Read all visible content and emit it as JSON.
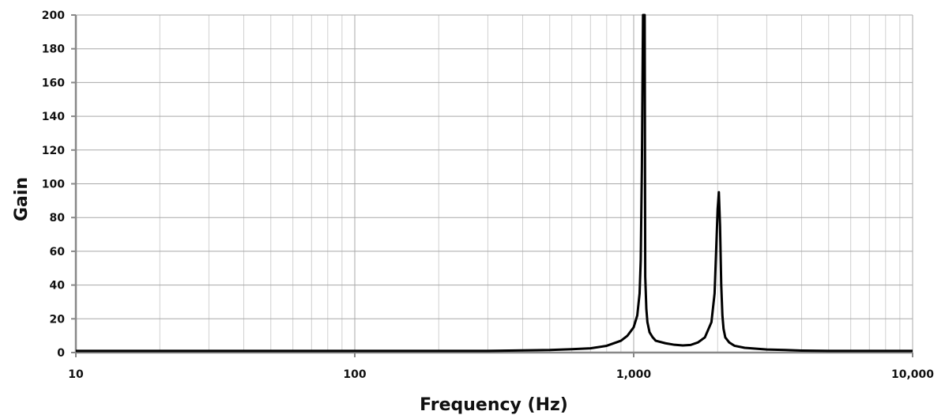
{
  "chart_data": {
    "type": "line",
    "title": "",
    "xlabel": "Frequency (Hz)",
    "ylabel": "Gain",
    "x_scale": "log",
    "xlim": [
      10,
      10000
    ],
    "ylim": [
      0,
      200
    ],
    "x_ticks": [
      10,
      100,
      1000,
      10000
    ],
    "x_tick_labels": [
      "10",
      "100",
      "1,000",
      "10,000"
    ],
    "y_ticks": [
      0,
      20,
      40,
      60,
      80,
      100,
      120,
      140,
      160,
      180,
      200
    ],
    "y_tick_labels": [
      "0",
      "20",
      "40",
      "60",
      "80",
      "100",
      "120",
      "140",
      "160",
      "180",
      "200"
    ],
    "grid": true,
    "legend": "none",
    "line_color": "#000000",
    "series": [
      {
        "x": [
          10,
          20,
          50,
          100,
          200,
          300,
          400,
          500,
          600,
          700,
          800,
          900,
          950,
          1000,
          1030,
          1050,
          1060,
          1070,
          1080,
          1085,
          1090,
          1095,
          1100,
          1110,
          1120,
          1140,
          1170,
          1200,
          1300,
          1400,
          1500,
          1600,
          1700,
          1800,
          1900,
          1950,
          2000,
          2020,
          2040,
          2060,
          2080,
          2100,
          2130,
          2200,
          2300,
          2500,
          3000,
          3500,
          4000,
          5000,
          7000,
          10000
        ],
        "y": [
          1,
          1,
          1,
          1,
          1,
          1,
          1.3,
          1.5,
          2,
          2.5,
          4,
          7,
          10,
          15,
          22,
          35,
          55,
          110,
          200,
          200,
          200,
          200,
          45,
          26,
          18,
          12,
          9,
          7,
          5.5,
          4.6,
          4.2,
          4.5,
          6,
          9,
          18,
          35,
          85,
          95,
          75,
          40,
          22,
          14,
          9,
          6,
          4,
          2.8,
          1.8,
          1.5,
          1.2,
          1,
          1,
          1
        ]
      }
    ]
  }
}
